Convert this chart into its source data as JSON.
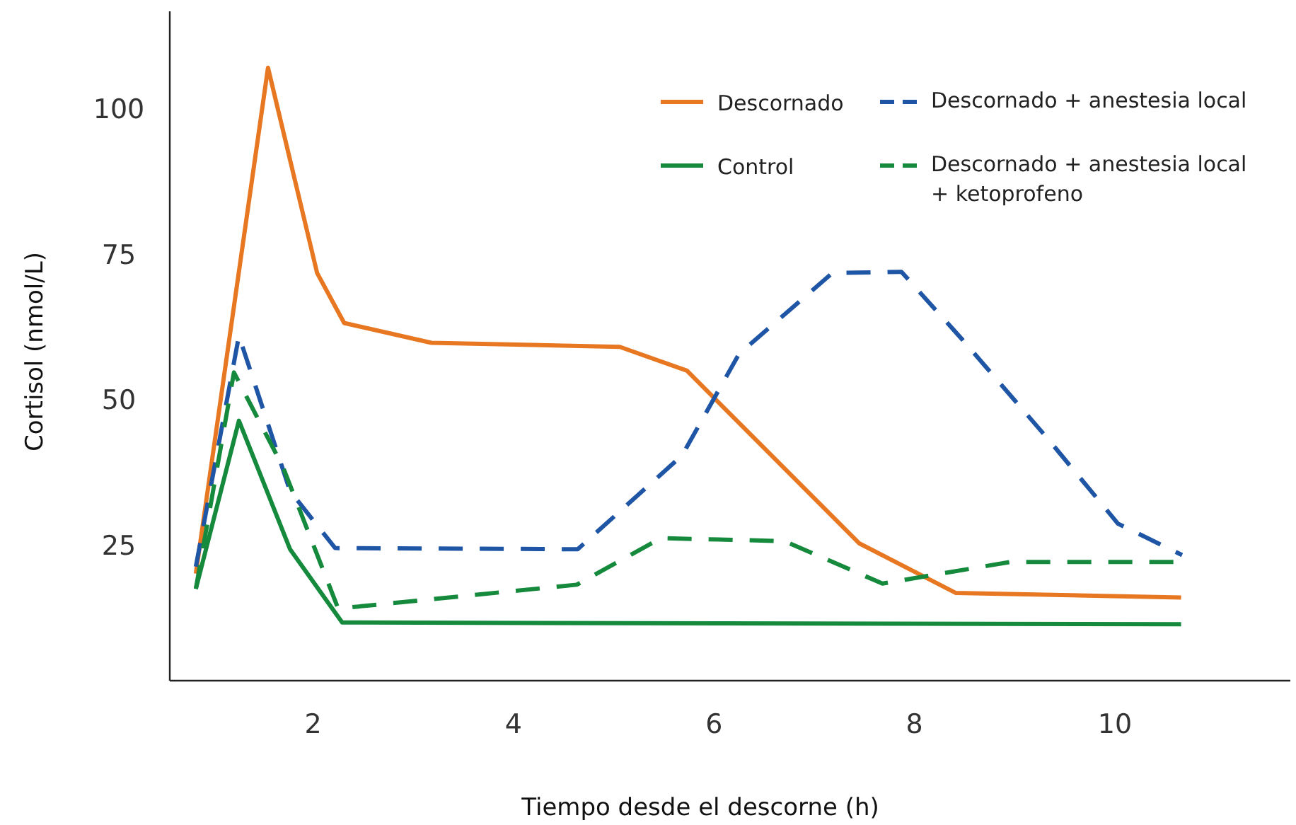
{
  "chart_data": {
    "type": "line",
    "xlabel": "Tiempo desde el descorne (h)",
    "ylabel": "Cortisol (nmol/L)",
    "xlim": [
      0.57,
      11.75
    ],
    "ylim": [
      1.7,
      116.8
    ],
    "xticks": [
      2,
      4,
      6,
      8,
      10
    ],
    "yticks": [
      25,
      50,
      75,
      100
    ],
    "grid": false,
    "legend": "top right",
    "series": [
      {
        "name": "Descornado",
        "color": "#e87722",
        "line_style": "solid",
        "x": [
          0.83,
          1.55,
          2.04,
          2.31,
          3.18,
          5.06,
          5.73,
          7.45,
          8.41,
          10.66
        ],
        "values": [
          20.1,
          107.1,
          71.8,
          63.2,
          59.8,
          59.1,
          55.0,
          25.3,
          16.8,
          16.0
        ]
      },
      {
        "name": "Descornado + anestesia local",
        "color": "#1f55a5",
        "line_style": "dashed",
        "x": [
          0.83,
          1.26,
          1.77,
          2.22,
          4.64,
          5.68,
          6.25,
          7.18,
          7.87,
          8.48,
          9.33,
          10.03,
          10.67
        ],
        "values": [
          21.3,
          61.0,
          34.3,
          24.5,
          24.3,
          40.4,
          57.9,
          71.8,
          72.0,
          60.3,
          43.3,
          28.7,
          23.3
        ]
      },
      {
        "name": "Control",
        "color": "#158a3c",
        "line_style": "solid",
        "x": [
          0.83,
          1.26,
          1.77,
          2.29,
          10.66
        ],
        "values": [
          17.5,
          46.4,
          24.3,
          11.7,
          11.4
        ]
      },
      {
        "name": "Descornado + anestesia local + ketoprofeno",
        "color": "#158a3c",
        "line_style": "dashed",
        "x": [
          0.83,
          1.21,
          1.7,
          2.25,
          4.63,
          5.47,
          6.7,
          7.68,
          8.95,
          10.6
        ],
        "values": [
          17.5,
          54.7,
          38.4,
          14.1,
          18.2,
          26.2,
          25.7,
          18.4,
          22.1,
          22.1
        ]
      }
    ]
  }
}
